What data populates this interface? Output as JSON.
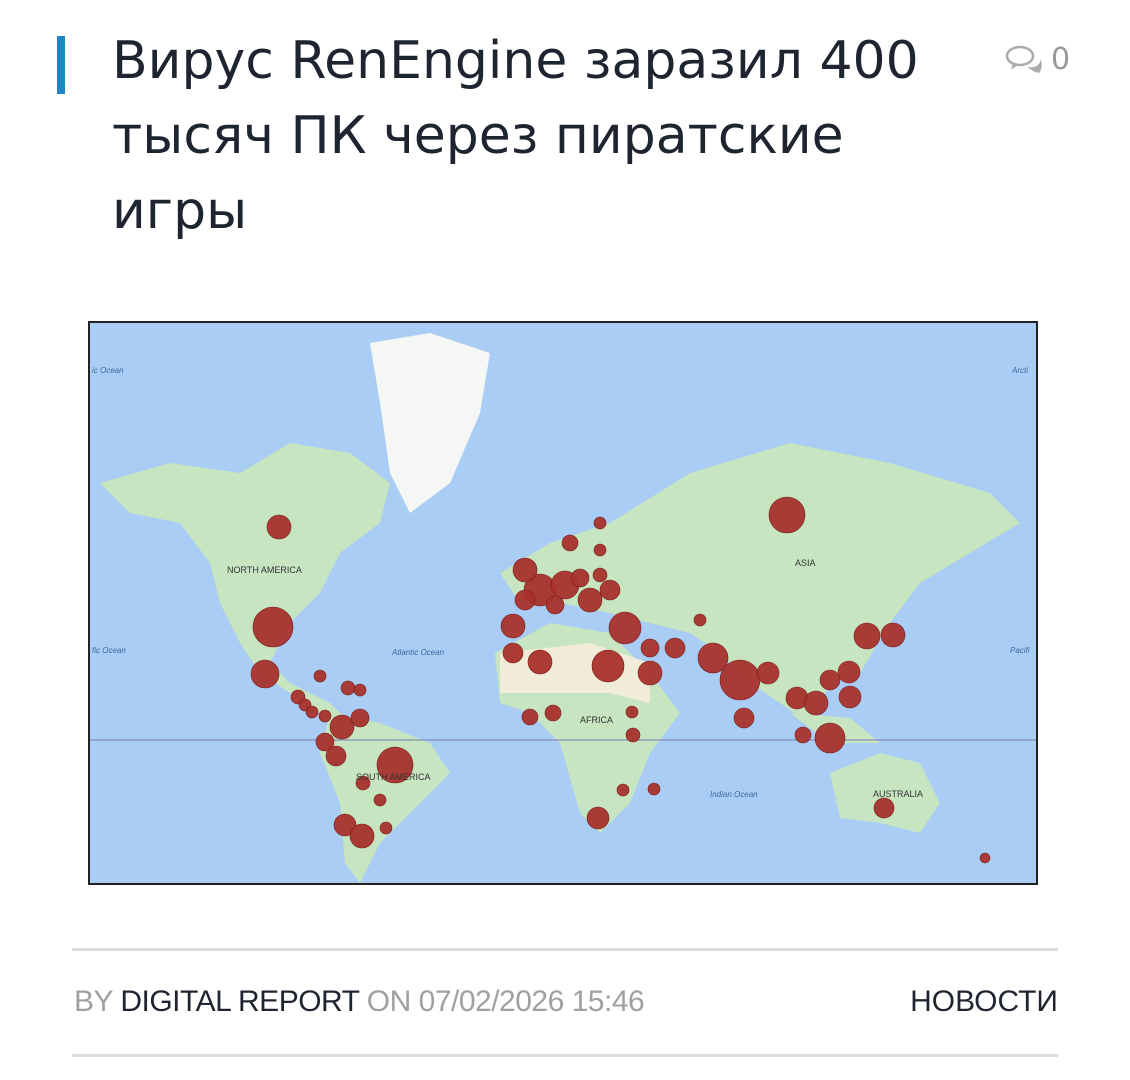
{
  "article": {
    "title": "Вирус RenEngine заразил 400 тысяч ПК через пиратские игры",
    "comment_count": "0",
    "comment_icon": "comments-icon",
    "accent_color": "#1e88c7"
  },
  "map": {
    "labels": {
      "north_america": "NORTH AMERICA",
      "south_america": "SOUTH AMERICA",
      "africa": "AFRICA",
      "asia": "ASIA",
      "australia": "AUSTRALIA",
      "atlantic": "Atlantic Ocean",
      "indian": "Indian Ocean",
      "pacific_left": "ic Ocean",
      "pacific_left2": "fic Ocean",
      "pacific_right": "Pacifi",
      "arctic": "Arcti"
    },
    "marker_color": "#a8322d",
    "land_color": "#c6e5c0",
    "water_color": "#a9cdf5"
  },
  "meta": {
    "by": "BY",
    "author": "DIGITAL REPORT",
    "on": "ON",
    "datetime": "07/02/2026 15:46",
    "category": "НОВОСТИ"
  }
}
